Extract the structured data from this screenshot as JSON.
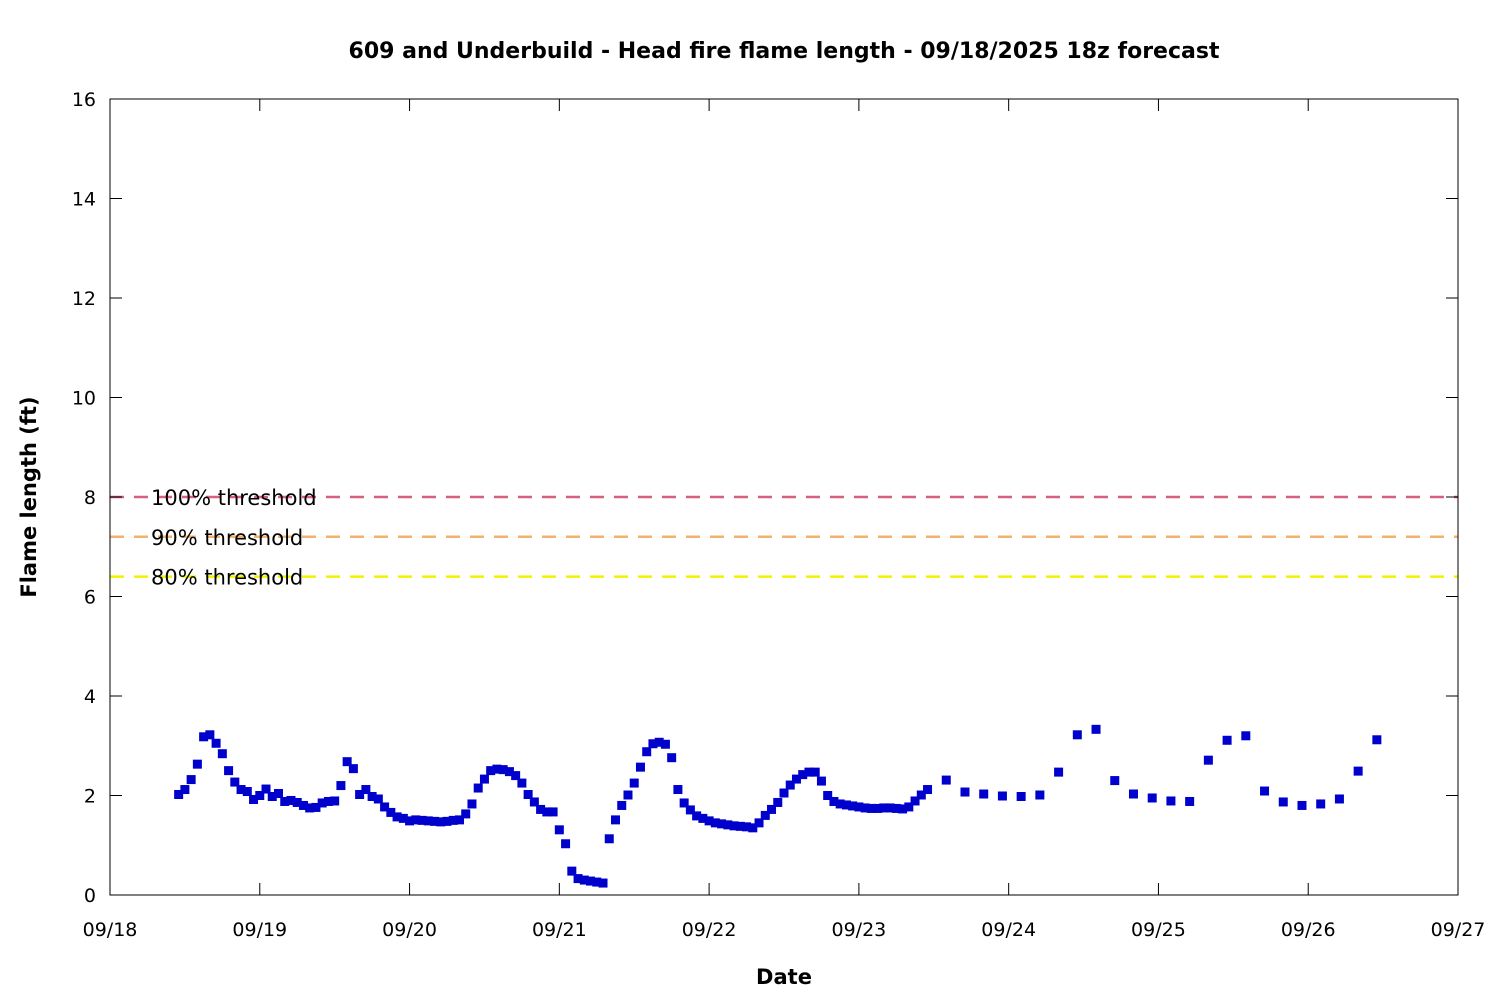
{
  "chart_data": {
    "type": "scatter",
    "title": "609 and Underbuild - Head fire flame length - 09/18/2025 18z forecast",
    "xlabel": "Date",
    "ylabel": "Flame length (ft)",
    "xlim": [
      "2025-09-18T00:00",
      "2025-09-27T00:00"
    ],
    "ylim": [
      0,
      16
    ],
    "x_ticks": [
      "09/18",
      "09/19",
      "09/20",
      "09/21",
      "09/22",
      "09/23",
      "09/24",
      "09/25",
      "09/26",
      "09/27"
    ],
    "y_ticks": [
      0,
      2,
      4,
      6,
      8,
      10,
      12,
      14,
      16
    ],
    "grid": false,
    "legend": "none",
    "marker_color": "#0000cc",
    "thresholds": [
      {
        "label": "100% threshold",
        "value": 8.0,
        "color": "#d95f7f"
      },
      {
        "label": "90% threshold",
        "value": 7.2,
        "color": "#f2b26e"
      },
      {
        "label": "80% threshold",
        "value": 6.4,
        "color": "#f2f200"
      }
    ],
    "series": [
      {
        "points": [
          [
            "2025-09-18T11:00",
            2.02
          ],
          [
            "2025-09-18T12:00",
            2.12
          ],
          [
            "2025-09-18T13:00",
            2.32
          ],
          [
            "2025-09-18T14:00",
            2.63
          ],
          [
            "2025-09-18T15:00",
            3.18
          ],
          [
            "2025-09-18T16:00",
            3.22
          ],
          [
            "2025-09-18T17:00",
            3.05
          ],
          [
            "2025-09-18T18:00",
            2.84
          ],
          [
            "2025-09-18T19:00",
            2.5
          ],
          [
            "2025-09-18T20:00",
            2.27
          ],
          [
            "2025-09-18T21:00",
            2.12
          ],
          [
            "2025-09-18T22:00",
            2.08
          ],
          [
            "2025-09-18T23:00",
            1.92
          ],
          [
            "2025-09-19T00:00",
            2.0
          ],
          [
            "2025-09-19T01:00",
            2.13
          ],
          [
            "2025-09-19T02:00",
            1.98
          ],
          [
            "2025-09-19T03:00",
            2.04
          ],
          [
            "2025-09-19T04:00",
            1.88
          ],
          [
            "2025-09-19T05:00",
            1.9
          ],
          [
            "2025-09-19T06:00",
            1.86
          ],
          [
            "2025-09-19T07:00",
            1.8
          ],
          [
            "2025-09-19T08:00",
            1.75
          ],
          [
            "2025-09-19T09:00",
            1.76
          ],
          [
            "2025-09-19T10:00",
            1.85
          ],
          [
            "2025-09-19T11:00",
            1.88
          ],
          [
            "2025-09-19T12:00",
            1.89
          ],
          [
            "2025-09-19T13:00",
            2.2
          ],
          [
            "2025-09-19T14:00",
            2.68
          ],
          [
            "2025-09-19T15:00",
            2.54
          ],
          [
            "2025-09-19T16:00",
            2.02
          ],
          [
            "2025-09-19T17:00",
            2.12
          ],
          [
            "2025-09-19T18:00",
            1.98
          ],
          [
            "2025-09-19T19:00",
            1.93
          ],
          [
            "2025-09-19T20:00",
            1.77
          ],
          [
            "2025-09-19T21:00",
            1.66
          ],
          [
            "2025-09-19T22:00",
            1.57
          ],
          [
            "2025-09-19T23:00",
            1.54
          ],
          [
            "2025-09-20T00:00",
            1.49
          ],
          [
            "2025-09-20T01:00",
            1.51
          ],
          [
            "2025-09-20T02:00",
            1.5
          ],
          [
            "2025-09-20T03:00",
            1.49
          ],
          [
            "2025-09-20T04:00",
            1.48
          ],
          [
            "2025-09-20T05:00",
            1.47
          ],
          [
            "2025-09-20T06:00",
            1.48
          ],
          [
            "2025-09-20T07:00",
            1.5
          ],
          [
            "2025-09-20T08:00",
            1.51
          ],
          [
            "2025-09-20T09:00",
            1.63
          ],
          [
            "2025-09-20T10:00",
            1.83
          ],
          [
            "2025-09-20T11:00",
            2.15
          ],
          [
            "2025-09-20T12:00",
            2.33
          ],
          [
            "2025-09-20T13:00",
            2.5
          ],
          [
            "2025-09-20T14:00",
            2.53
          ],
          [
            "2025-09-20T15:00",
            2.52
          ],
          [
            "2025-09-20T16:00",
            2.48
          ],
          [
            "2025-09-20T17:00",
            2.4
          ],
          [
            "2025-09-20T18:00",
            2.25
          ],
          [
            "2025-09-20T19:00",
            2.02
          ],
          [
            "2025-09-20T20:00",
            1.87
          ],
          [
            "2025-09-20T21:00",
            1.72
          ],
          [
            "2025-09-20T22:00",
            1.67
          ],
          [
            "2025-09-20T23:00",
            1.67
          ],
          [
            "2025-09-21T00:00",
            1.31
          ],
          [
            "2025-09-21T01:00",
            1.03
          ],
          [
            "2025-09-21T02:00",
            0.48
          ],
          [
            "2025-09-21T03:00",
            0.33
          ],
          [
            "2025-09-21T04:00",
            0.3
          ],
          [
            "2025-09-21T05:00",
            0.28
          ],
          [
            "2025-09-21T06:00",
            0.26
          ],
          [
            "2025-09-21T07:00",
            0.24
          ],
          [
            "2025-09-21T08:00",
            1.13
          ],
          [
            "2025-09-21T09:00",
            1.51
          ],
          [
            "2025-09-21T10:00",
            1.8
          ],
          [
            "2025-09-21T11:00",
            2.01
          ],
          [
            "2025-09-21T12:00",
            2.25
          ],
          [
            "2025-09-21T13:00",
            2.57
          ],
          [
            "2025-09-21T14:00",
            2.88
          ],
          [
            "2025-09-21T15:00",
            3.04
          ],
          [
            "2025-09-21T16:00",
            3.07
          ],
          [
            "2025-09-21T17:00",
            3.03
          ],
          [
            "2025-09-21T18:00",
            2.76
          ],
          [
            "2025-09-21T19:00",
            2.12
          ],
          [
            "2025-09-21T20:00",
            1.85
          ],
          [
            "2025-09-21T21:00",
            1.71
          ],
          [
            "2025-09-21T22:00",
            1.59
          ],
          [
            "2025-09-21T23:00",
            1.54
          ],
          [
            "2025-09-22T00:00",
            1.49
          ],
          [
            "2025-09-22T01:00",
            1.45
          ],
          [
            "2025-09-22T02:00",
            1.43
          ],
          [
            "2025-09-22T03:00",
            1.41
          ],
          [
            "2025-09-22T04:00",
            1.39
          ],
          [
            "2025-09-22T05:00",
            1.38
          ],
          [
            "2025-09-22T06:00",
            1.37
          ],
          [
            "2025-09-22T07:00",
            1.35
          ],
          [
            "2025-09-22T08:00",
            1.45
          ],
          [
            "2025-09-22T09:00",
            1.6
          ],
          [
            "2025-09-22T10:00",
            1.72
          ],
          [
            "2025-09-22T11:00",
            1.86
          ],
          [
            "2025-09-22T12:00",
            2.05
          ],
          [
            "2025-09-22T13:00",
            2.21
          ],
          [
            "2025-09-22T14:00",
            2.33
          ],
          [
            "2025-09-22T15:00",
            2.42
          ],
          [
            "2025-09-22T16:00",
            2.47
          ],
          [
            "2025-09-22T17:00",
            2.47
          ],
          [
            "2025-09-22T18:00",
            2.29
          ],
          [
            "2025-09-22T19:00",
            2.0
          ],
          [
            "2025-09-22T20:00",
            1.88
          ],
          [
            "2025-09-22T21:00",
            1.83
          ],
          [
            "2025-09-22T22:00",
            1.81
          ],
          [
            "2025-09-22T23:00",
            1.79
          ],
          [
            "2025-09-23T00:00",
            1.77
          ],
          [
            "2025-09-23T01:00",
            1.75
          ],
          [
            "2025-09-23T02:00",
            1.74
          ],
          [
            "2025-09-23T03:00",
            1.74
          ],
          [
            "2025-09-23T04:00",
            1.75
          ],
          [
            "2025-09-23T05:00",
            1.75
          ],
          [
            "2025-09-23T06:00",
            1.74
          ],
          [
            "2025-09-23T07:00",
            1.73
          ],
          [
            "2025-09-23T08:00",
            1.77
          ],
          [
            "2025-09-23T09:00",
            1.89
          ],
          [
            "2025-09-23T10:00",
            2.01
          ],
          [
            "2025-09-23T11:00",
            2.12
          ],
          [
            "2025-09-23T14:00",
            2.31
          ],
          [
            "2025-09-23T17:00",
            2.07
          ],
          [
            "2025-09-23T20:00",
            2.03
          ],
          [
            "2025-09-23T23:00",
            1.99
          ],
          [
            "2025-09-24T02:00",
            1.98
          ],
          [
            "2025-09-24T05:00",
            2.01
          ],
          [
            "2025-09-24T08:00",
            2.47
          ],
          [
            "2025-09-24T11:00",
            3.22
          ],
          [
            "2025-09-24T14:00",
            3.33
          ],
          [
            "2025-09-24T17:00",
            2.3
          ],
          [
            "2025-09-24T20:00",
            2.03
          ],
          [
            "2025-09-24T23:00",
            1.95
          ],
          [
            "2025-09-25T02:00",
            1.89
          ],
          [
            "2025-09-25T05:00",
            1.88
          ],
          [
            "2025-09-25T08:00",
            2.71
          ],
          [
            "2025-09-25T11:00",
            3.11
          ],
          [
            "2025-09-25T14:00",
            3.2
          ],
          [
            "2025-09-25T17:00",
            2.09
          ],
          [
            "2025-09-25T20:00",
            1.87
          ],
          [
            "2025-09-25T23:00",
            1.8
          ],
          [
            "2025-09-26T02:00",
            1.83
          ],
          [
            "2025-09-26T05:00",
            1.93
          ],
          [
            "2025-09-26T08:00",
            2.49
          ],
          [
            "2025-09-26T11:00",
            3.12
          ]
        ]
      }
    ]
  }
}
